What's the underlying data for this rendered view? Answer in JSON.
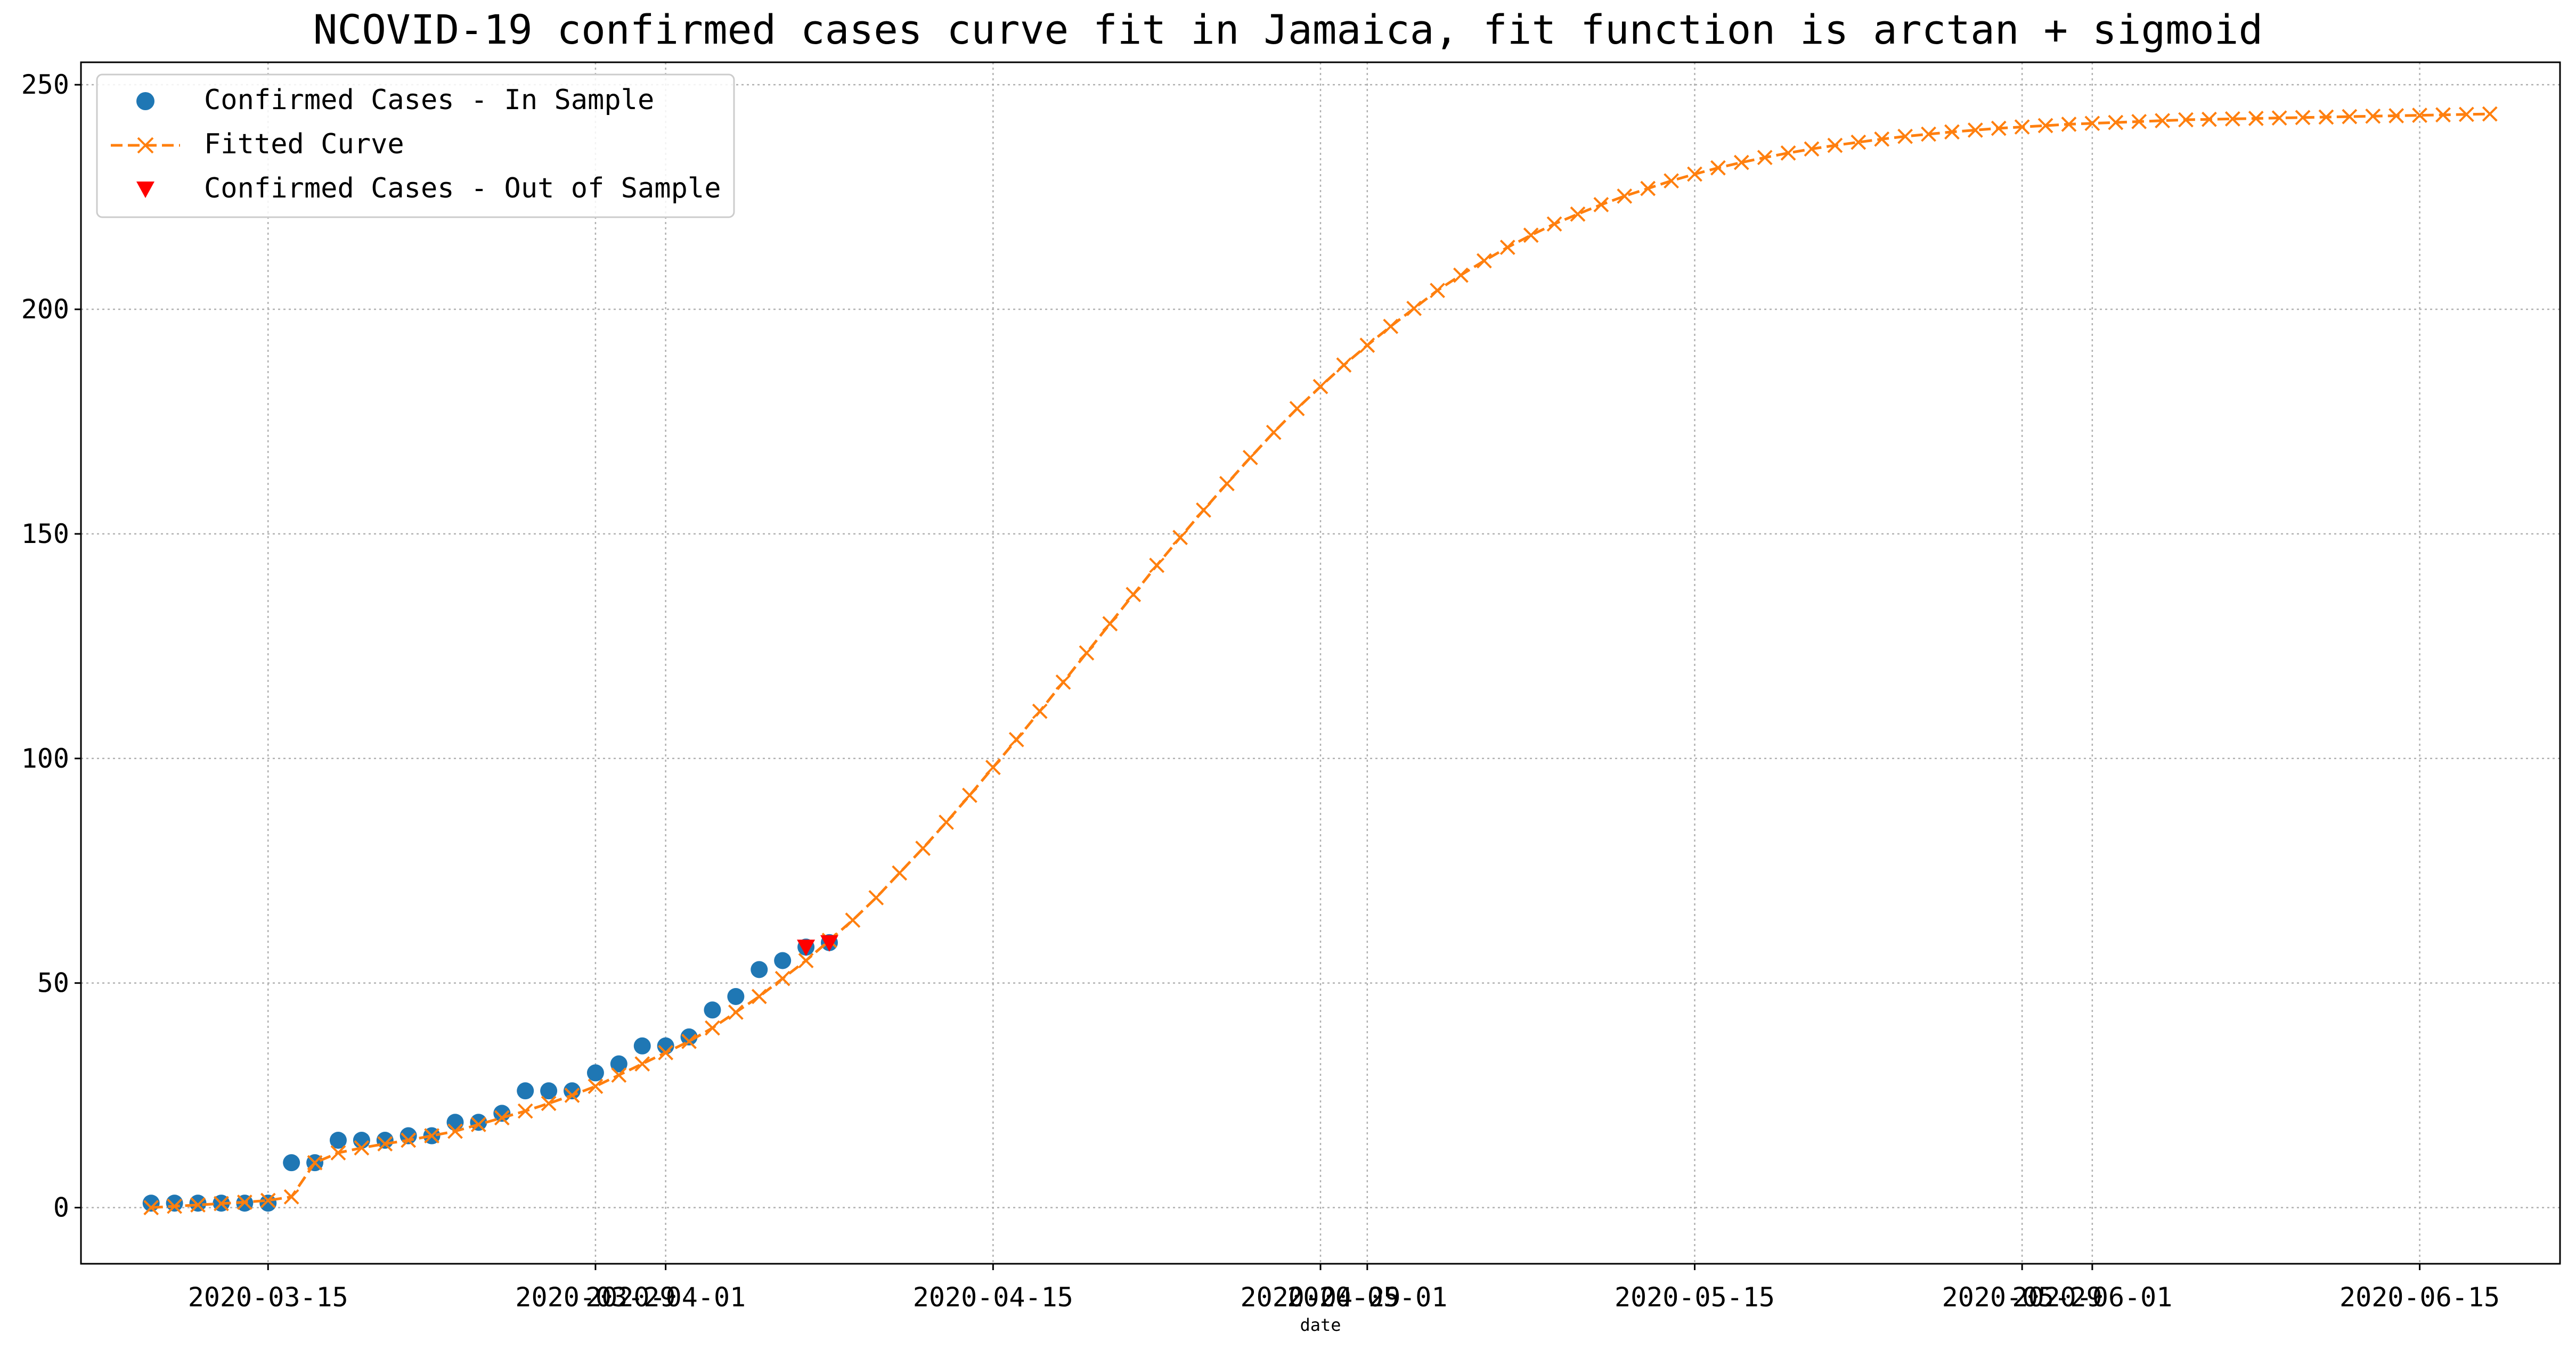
{
  "chart_data": {
    "type": "line",
    "title": "NCOVID-19 confirmed cases curve fit in Jamaica, fit function is arctan + sigmoid",
    "xlabel": "date",
    "ylabel": "",
    "xlim": [
      "2020-03-07",
      "2020-06-21"
    ],
    "ylim": [
      -12.5,
      255
    ],
    "grid": true,
    "legend_position": "top-left",
    "x_ticks": [
      {
        "date": "2020-03-15",
        "label": "2020-03-15"
      },
      {
        "date": "2020-03-29",
        "label": "2020-03-29"
      },
      {
        "date": "2020-04-01",
        "label": "2020-04-01"
      },
      {
        "date": "2020-04-15",
        "label": "2020-04-15"
      },
      {
        "date": "2020-04-29",
        "label": "2020-04-29"
      },
      {
        "date": "2020-05-01",
        "label": "2020-05-01"
      },
      {
        "date": "2020-05-15",
        "label": "2020-05-15"
      },
      {
        "date": "2020-05-29",
        "label": "2020-05-29"
      },
      {
        "date": "2020-06-01",
        "label": "2020-06-01"
      },
      {
        "date": "2020-06-15",
        "label": "2020-06-15"
      }
    ],
    "y_ticks": [
      0,
      50,
      100,
      150,
      200,
      250
    ],
    "series": [
      {
        "name": "Confirmed Cases - In Sample",
        "kind": "marker-circle",
        "color": "#1f77b4",
        "dates": [
          "2020-03-10",
          "2020-03-11",
          "2020-03-12",
          "2020-03-13",
          "2020-03-14",
          "2020-03-15",
          "2020-03-16",
          "2020-03-17",
          "2020-03-18",
          "2020-03-19",
          "2020-03-20",
          "2020-03-21",
          "2020-03-22",
          "2020-03-23",
          "2020-03-24",
          "2020-03-25",
          "2020-03-26",
          "2020-03-27",
          "2020-03-28",
          "2020-03-29",
          "2020-03-30",
          "2020-03-31",
          "2020-04-01",
          "2020-04-02",
          "2020-04-03",
          "2020-04-04",
          "2020-04-05",
          "2020-04-06",
          "2020-04-07",
          "2020-04-08"
        ],
        "values": [
          1,
          1,
          1,
          1,
          1,
          1,
          10,
          10,
          15,
          15,
          15,
          16,
          16,
          19,
          19,
          21,
          26,
          26,
          26,
          30,
          32,
          36,
          36,
          38,
          44,
          47,
          53,
          55,
          58,
          59
        ]
      },
      {
        "name": "Fitted Curve",
        "kind": "dashed-x",
        "color": "#ff7f0e",
        "start_date": "2020-03-10",
        "values": [
          0.0,
          0.3,
          0.6,
          0.9,
          1.2,
          1.6,
          2.4,
          10.0,
          12.2,
          13.3,
          14.2,
          15.0,
          16.0,
          17.0,
          18.5,
          20.0,
          21.5,
          23.2,
          25.0,
          27.0,
          29.5,
          32.0,
          34.5,
          37.0,
          40.0,
          43.5,
          47.0,
          51.0,
          55.0,
          59.5,
          64.0,
          69.0,
          74.5,
          80.0,
          85.8,
          91.8,
          98.0,
          104.2,
          110.5,
          117.0,
          123.5,
          130.0,
          136.5,
          143.0,
          149.2,
          155.3,
          161.2,
          167.0,
          172.6,
          177.9,
          182.8,
          187.6,
          192.0,
          196.2,
          200.2,
          204.2,
          207.6,
          210.8,
          213.8,
          216.5,
          219.0,
          221.2,
          223.3,
          225.2,
          226.9,
          228.6,
          230.1,
          231.5,
          232.7,
          233.8,
          234.8,
          235.7,
          236.5,
          237.2,
          237.9,
          238.5,
          239.0,
          239.5,
          239.9,
          240.3,
          240.6,
          240.9,
          241.2,
          241.4,
          241.6,
          241.8,
          242.0,
          242.2,
          242.3,
          242.4,
          242.5,
          242.6,
          242.7,
          242.8,
          242.9,
          243.0,
          243.1,
          243.2,
          243.3,
          243.4,
          243.5
        ]
      },
      {
        "name": "Confirmed Cases - Out of Sample",
        "kind": "marker-triangle-down",
        "color": "#ff0000",
        "dates": [
          "2020-04-07",
          "2020-04-08"
        ],
        "values": [
          58,
          59
        ]
      }
    ]
  }
}
